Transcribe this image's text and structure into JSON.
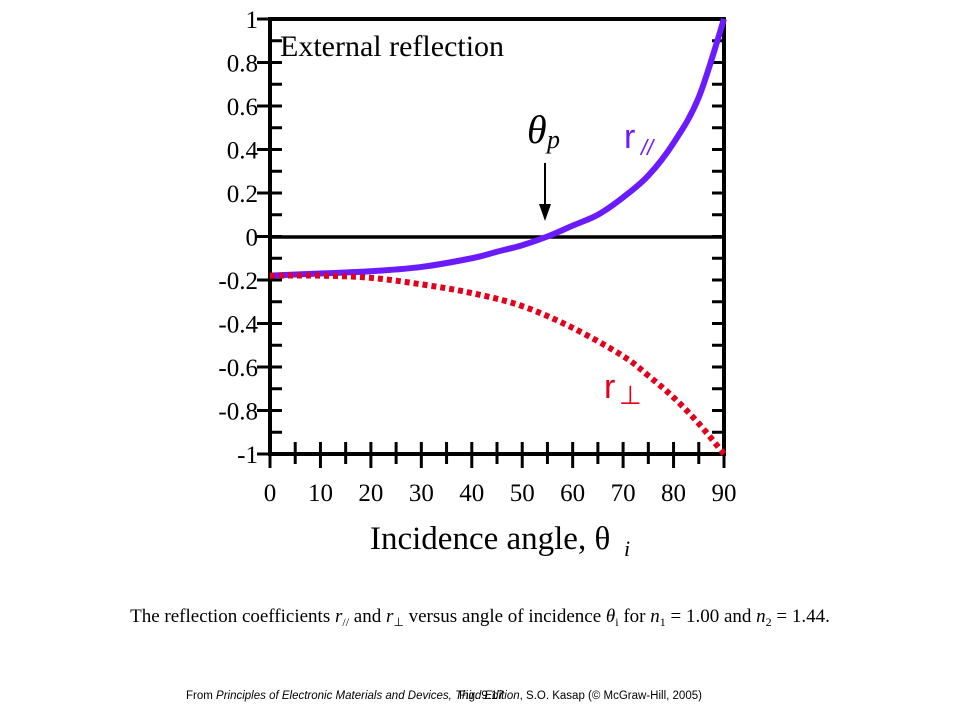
{
  "chart_data": {
    "type": "line",
    "title": "External reflection",
    "xlabel": "Incidence angle, θ",
    "xlabel_subscript": "i",
    "x_ticks": [
      0,
      10,
      20,
      30,
      40,
      50,
      60,
      70,
      80,
      90
    ],
    "y_ticks": [
      1,
      0.8,
      0.6,
      0.4,
      0.2,
      0,
      -0.2,
      -0.4,
      -0.6,
      -0.8,
      -1
    ],
    "y_tick_labels": [
      "1",
      "0.8",
      "0.6",
      "0.4",
      "0.2",
      "0",
      "-0.2",
      "-0.4",
      "-0.6",
      "-0.8",
      "-1"
    ],
    "xlim": [
      0,
      90
    ],
    "ylim": [
      -1,
      1
    ],
    "grid": false,
    "annotation": {
      "label": "θ",
      "subscript": "p",
      "x": 55.2
    },
    "series": [
      {
        "name": "r",
        "subscript": "//",
        "style": "solid",
        "color": "#6a1bff",
        "x": [
          0,
          10,
          20,
          30,
          40,
          45,
          50,
          55,
          60,
          65,
          70,
          75,
          80,
          85,
          90
        ],
        "values": [
          -0.18,
          -0.17,
          -0.16,
          -0.14,
          -0.1,
          -0.07,
          -0.04,
          0.0,
          0.05,
          0.1,
          0.18,
          0.28,
          0.43,
          0.64,
          1.0
        ]
      },
      {
        "name": "r",
        "subscript": "⊥",
        "style": "dotted",
        "color": "#e3001b",
        "x": [
          0,
          10,
          20,
          30,
          40,
          50,
          60,
          70,
          75,
          80,
          85,
          90
        ],
        "values": [
          -0.18,
          -0.18,
          -0.19,
          -0.22,
          -0.26,
          -0.32,
          -0.42,
          -0.55,
          -0.64,
          -0.74,
          -0.86,
          -1.0
        ]
      }
    ]
  },
  "caption": {
    "prefix": "The reflection coefficients ",
    "r": "r",
    "par_sub": "//",
    "and1": " and ",
    "perp_sub": "⊥",
    "mid": " versus angle of incidence ",
    "theta": "θ",
    "theta_sub": "i",
    "for": " for ",
    "n": "n",
    "n1_sub": "1",
    "n1_val": " = 1.00 and ",
    "n2_sub": "2",
    "n2_val": " = 1.44."
  },
  "footer": {
    "from": "From ",
    "book": "Principles of Electronic Materials and Devices, Third Edition",
    "rest": ", S.O. Kasap (© McGraw-Hill, 2005)",
    "fig": "Fig. 9.17"
  }
}
